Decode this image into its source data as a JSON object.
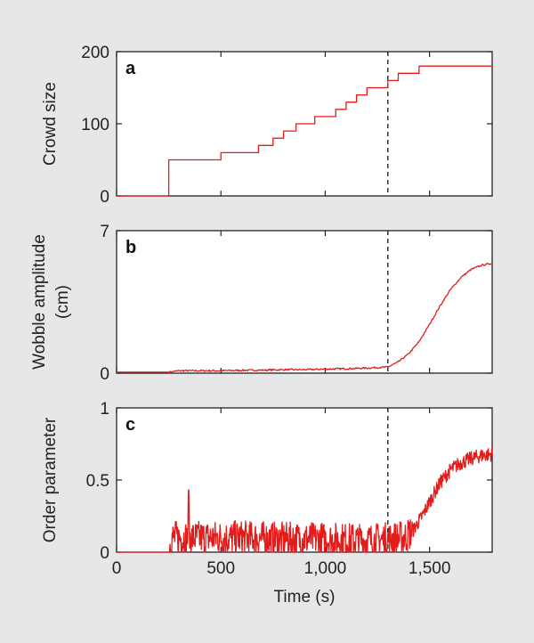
{
  "chart_data": [
    {
      "type": "line",
      "panel_label": "a",
      "ylabel": "Crowd size",
      "ylim": [
        0,
        200
      ],
      "yticks": [
        0,
        100,
        200
      ],
      "xlim": [
        0,
        1800
      ],
      "line_color": "#e31b1b",
      "dashed_vline_x": 1300,
      "series": [
        {
          "x": [
            0,
            250,
            250,
            500,
            500,
            680,
            680,
            750,
            750,
            800,
            800,
            860,
            860,
            950,
            950,
            1050,
            1050,
            1100,
            1100,
            1150,
            1150,
            1200,
            1200,
            1250,
            1250,
            1300,
            1300,
            1350,
            1350,
            1400,
            1400,
            1450,
            1450,
            1800
          ],
          "values": [
            0,
            0,
            50,
            50,
            60,
            60,
            70,
            70,
            80,
            80,
            90,
            90,
            100,
            100,
            110,
            110,
            120,
            120,
            130,
            130,
            140,
            140,
            150,
            150,
            150,
            150,
            160,
            160,
            170,
            170,
            170,
            170,
            180,
            180
          ]
        }
      ]
    },
    {
      "type": "line",
      "panel_label": "b",
      "ylabel": "Wobble amplitude (cm)",
      "ylabel_lines": [
        "Wobble amplitude",
        "(cm)"
      ],
      "ylim": [
        0,
        7
      ],
      "yticks": [
        0,
        7
      ],
      "xlim": [
        0,
        1800
      ],
      "line_color": "#e31b1b",
      "dashed_vline_x": 1300,
      "series": [
        {
          "x": [
            0,
            250,
            300,
            400,
            500,
            600,
            700,
            800,
            900,
            1000,
            1100,
            1200,
            1300,
            1350,
            1400,
            1450,
            1500,
            1550,
            1600,
            1650,
            1700,
            1750,
            1800
          ],
          "values": [
            0.05,
            0.05,
            0.12,
            0.12,
            0.12,
            0.14,
            0.15,
            0.17,
            0.17,
            0.2,
            0.22,
            0.25,
            0.3,
            0.55,
            0.95,
            1.55,
            2.4,
            3.3,
            4.1,
            4.7,
            5.1,
            5.3,
            5.4
          ]
        }
      ]
    },
    {
      "type": "line",
      "panel_label": "c",
      "ylabel": "Order parameter",
      "ylim": [
        0,
        1
      ],
      "yticks": [
        0,
        0.5,
        1
      ],
      "ytick_labels": [
        "0",
        "0.5",
        "1"
      ],
      "xlim": [
        0,
        1800
      ],
      "xticks": [
        0,
        500,
        1000,
        1500
      ],
      "xtick_labels": [
        "0",
        "500",
        "1,000",
        "1,500"
      ],
      "xlabel": "Time (s)",
      "line_color": "#e31b1b",
      "dashed_vline_x": 1300,
      "series": [
        {
          "x": [
            0,
            250,
            260,
            400,
            600,
            800,
            1000,
            1200,
            1300,
            1380,
            1420,
            1460,
            1500,
            1550,
            1600,
            1650,
            1700,
            1750,
            1800
          ],
          "values": [
            0,
            0,
            0.1,
            0.1,
            0.1,
            0.09,
            0.09,
            0.08,
            0.09,
            0.1,
            0.15,
            0.24,
            0.35,
            0.48,
            0.57,
            0.62,
            0.65,
            0.67,
            0.68
          ],
          "noise_amplitude_before_transition": 0.12,
          "peak_spike": {
            "x": 345,
            "value": 0.43
          }
        }
      ]
    }
  ]
}
